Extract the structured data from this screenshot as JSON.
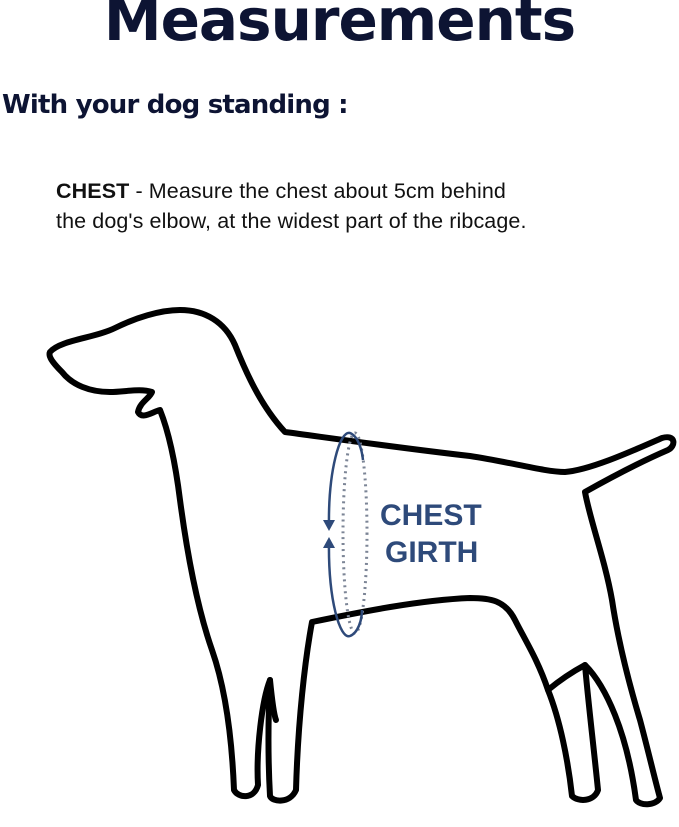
{
  "title": "Measurements",
  "subtitle": "With your dog standing :",
  "instruction": {
    "label": "CHEST",
    "separator": " - ",
    "line1": "Measure the chest about 5cm behind",
    "line2": "the dog's elbow, at the widest part of the ribcage."
  },
  "diagram": {
    "label_line1": "CHEST",
    "label_line2": "GIRTH",
    "accent_color": "#2e4a7a",
    "outline_color": "#000000"
  }
}
